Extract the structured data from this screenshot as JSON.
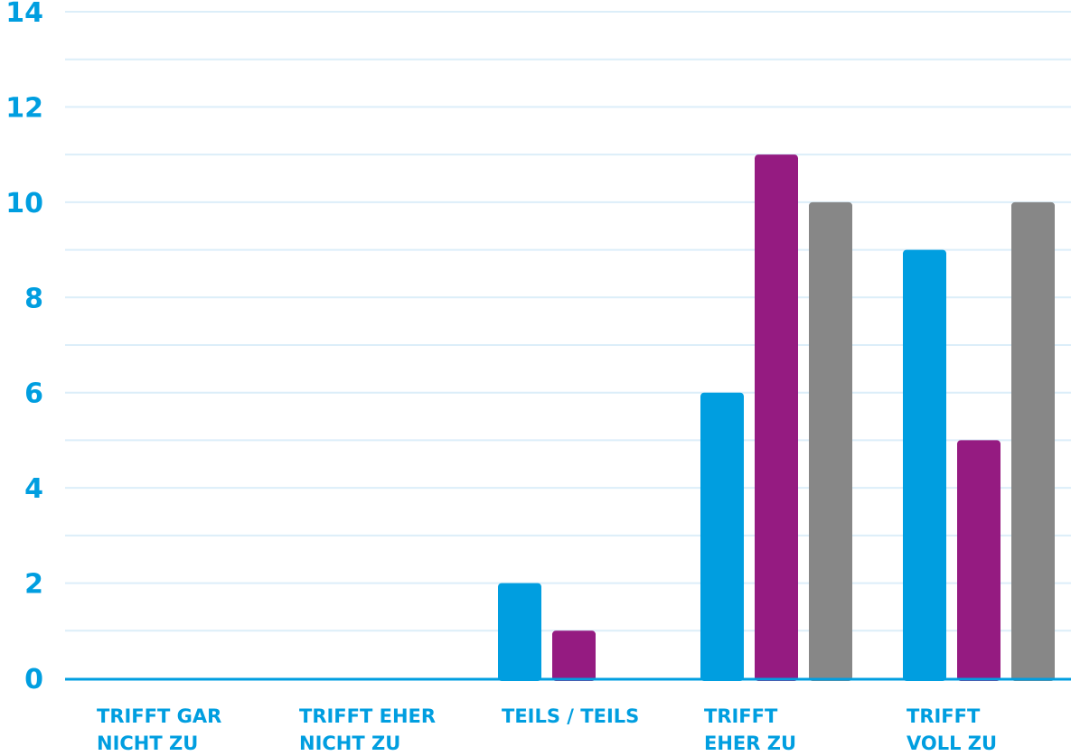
{
  "chart_data": {
    "type": "bar",
    "title": "",
    "xlabel": "",
    "ylabel": "",
    "categories": [
      [
        "TRIFFT GAR",
        "NICHT ZU"
      ],
      [
        "TRIFFT EHER",
        "NICHT ZU"
      ],
      [
        "TEILS / TEILS"
      ],
      [
        "TRIFFT",
        "EHER ZU"
      ],
      [
        "TRIFFT",
        "VOLL ZU"
      ]
    ],
    "series": [
      {
        "color": "#009ee0",
        "values": [
          0,
          0,
          2,
          6,
          9
        ]
      },
      {
        "color": "#951b81",
        "values": [
          0,
          0,
          1,
          11,
          5
        ]
      },
      {
        "color": "#878787",
        "values": [
          0,
          0,
          0,
          10,
          10
        ]
      }
    ],
    "ylim": [
      0,
      14
    ],
    "yticks": [
      0,
      2,
      4,
      6,
      8,
      10,
      12,
      14
    ],
    "grid": true,
    "legend": "none",
    "colors": {
      "axis_text": "#009ee0",
      "gridline": "#dceef9",
      "baseline": "#009ee0"
    }
  }
}
